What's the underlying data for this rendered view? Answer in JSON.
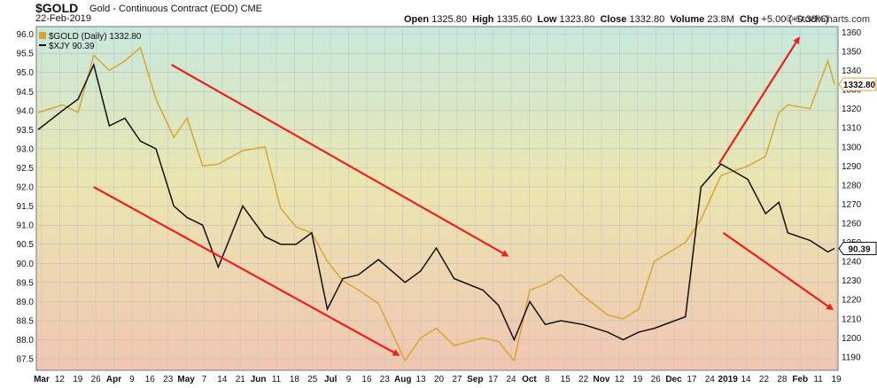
{
  "header": {
    "symbol": "$GOLD",
    "name": "Gold - Continuous Contract (EOD)",
    "exchange": "CME",
    "date": "22-Feb-2019",
    "open_label": "Open",
    "open": "1325.80",
    "high_label": "High",
    "high": "1335.60",
    "low_label": "Low",
    "low": "1323.80",
    "close_label": "Close",
    "close": "1332.80",
    "volume_label": "Volume",
    "volume": "23.8M",
    "chg_label": "Chg",
    "chg": "+5.00 (+0.38%)",
    "brand": "© StockCharts.com"
  },
  "colors": {
    "gold": "#d9a531",
    "xjy": "#111111",
    "arrow": "#e8201e",
    "bg_top": "#c7e9dd",
    "bg_mid": "#ebe6b0",
    "bg_bottom": "#f1c6b2"
  },
  "chart_data": {
    "type": "line",
    "title": "$GOLD Gold - Continuous Contract (EOD) CME",
    "legend": [
      {
        "label": "$GOLD (Daily) 1332.80",
        "color": "#d9a531",
        "style": "square"
      },
      {
        "label": "$XJY 90.39",
        "color": "#111111",
        "style": "line"
      }
    ],
    "legend_placement": "top-left",
    "x_range": [
      "2018-03-01",
      "2019-02-22"
    ],
    "x_ticks": [
      "Mar",
      "12",
      "19",
      "26",
      "Apr",
      "9",
      "16",
      "23",
      "May",
      "7",
      "14",
      "21",
      "Jun",
      "11",
      "18",
      "25",
      "Jul",
      "9",
      "16",
      "23",
      "Aug",
      "13",
      "20",
      "27",
      "Sep",
      "17",
      "24",
      "Oct",
      "8",
      "15",
      "22",
      "Nov",
      "12",
      "19",
      "26",
      "Dec",
      "17",
      "24",
      "2019",
      "14",
      "22",
      "28",
      "Feb",
      "11",
      "19"
    ],
    "bold_ticks": [
      "Mar",
      "Apr",
      "May",
      "Jun",
      "Jul",
      "Aug",
      "Sep",
      "Oct",
      "Nov",
      "Dec",
      "2019",
      "Feb"
    ],
    "left_axis": {
      "series": "$XJY",
      "ticks": [
        "87.5",
        "88.0",
        "88.5",
        "89.0",
        "89.5",
        "90.0",
        "90.5",
        "91.0",
        "91.5",
        "92.0",
        "92.5",
        "93.0",
        "93.5",
        "94.0",
        "94.5",
        "95.0",
        "95.5",
        "96.0"
      ],
      "range": [
        87.2,
        96.2
      ]
    },
    "right_axis": {
      "series": "$GOLD",
      "ticks": [
        "1190",
        "1200",
        "1210",
        "1220",
        "1230",
        "1240",
        "1250",
        "1260",
        "1270",
        "1280",
        "1290",
        "1300",
        "1310",
        "1320",
        "1330",
        "1340",
        "1350",
        "1360"
      ],
      "range": [
        1183,
        1363
      ]
    },
    "last_values": {
      "gold": "1332.80",
      "xjy": "90.39"
    },
    "grid": true,
    "series": [
      {
        "name": "$GOLD (Daily)",
        "axis": "right",
        "x": [
          "2018-03-01",
          "2018-03-12",
          "2018-03-19",
          "2018-03-26",
          "2018-04-02",
          "2018-04-09",
          "2018-04-16",
          "2018-04-23",
          "2018-05-01",
          "2018-05-07",
          "2018-05-14",
          "2018-05-21",
          "2018-06-01",
          "2018-06-11",
          "2018-06-18",
          "2018-06-25",
          "2018-07-02",
          "2018-07-09",
          "2018-07-16",
          "2018-07-23",
          "2018-08-01",
          "2018-08-13",
          "2018-08-20",
          "2018-08-27",
          "2018-09-04",
          "2018-09-17",
          "2018-09-24",
          "2018-10-01",
          "2018-10-08",
          "2018-10-15",
          "2018-10-22",
          "2018-11-01",
          "2018-11-12",
          "2018-11-19",
          "2018-11-26",
          "2018-12-03",
          "2018-12-17",
          "2018-12-24",
          "2019-01-02",
          "2019-01-14",
          "2019-01-22",
          "2019-01-28",
          "2019-02-01",
          "2019-02-11",
          "2019-02-19",
          "2019-02-22"
        ],
        "values": [
          1318,
          1322,
          1318,
          1348,
          1340,
          1345,
          1352,
          1325,
          1305,
          1315,
          1290,
          1291,
          1298,
          1300,
          1268,
          1258,
          1255,
          1240,
          1230,
          1225,
          1218,
          1188,
          1200,
          1205,
          1196,
          1200,
          1198,
          1188,
          1225,
          1228,
          1233,
          1222,
          1212,
          1210,
          1215,
          1240,
          1250,
          1262,
          1285,
          1290,
          1295,
          1318,
          1322,
          1320,
          1345,
          1332.8
        ]
      },
      {
        "name": "$XJY",
        "axis": "left",
        "x": [
          "2018-03-01",
          "2018-03-12",
          "2018-03-19",
          "2018-03-26",
          "2018-04-02",
          "2018-04-09",
          "2018-04-16",
          "2018-04-23",
          "2018-05-01",
          "2018-05-07",
          "2018-05-14",
          "2018-05-21",
          "2018-06-01",
          "2018-06-11",
          "2018-06-18",
          "2018-06-25",
          "2018-07-02",
          "2018-07-09",
          "2018-07-16",
          "2018-07-23",
          "2018-08-01",
          "2018-08-13",
          "2018-08-20",
          "2018-08-27",
          "2018-09-04",
          "2018-09-17",
          "2018-09-24",
          "2018-10-01",
          "2018-10-08",
          "2018-10-15",
          "2018-10-22",
          "2018-11-01",
          "2018-11-12",
          "2018-11-19",
          "2018-11-26",
          "2018-12-03",
          "2018-12-17",
          "2018-12-24",
          "2019-01-02",
          "2019-01-14",
          "2019-01-22",
          "2019-01-28",
          "2019-02-01",
          "2019-02-11",
          "2019-02-19",
          "2019-02-22"
        ],
        "values": [
          93.5,
          94.0,
          94.3,
          95.2,
          93.6,
          93.8,
          93.2,
          93.0,
          91.5,
          91.2,
          91.0,
          89.9,
          91.5,
          90.7,
          90.5,
          90.5,
          90.8,
          88.8,
          89.6,
          89.7,
          90.1,
          89.5,
          89.8,
          90.4,
          89.6,
          89.3,
          88.9,
          88.0,
          89.0,
          88.4,
          88.5,
          88.4,
          88.2,
          88.0,
          88.2,
          88.3,
          88.6,
          92.0,
          92.6,
          92.2,
          91.3,
          91.6,
          90.8,
          90.6,
          90.3,
          90.39
        ]
      }
    ],
    "annotations": [
      {
        "type": "arrow",
        "from": [
          "2018-04-30",
          95.2
        ],
        "to": [
          "2018-09-28",
          90.2
        ],
        "color": "#e8201e"
      },
      {
        "type": "arrow",
        "from": [
          "2018-03-26",
          92.0
        ],
        "to": [
          "2018-08-10",
          87.6
        ],
        "color": "#e8201e"
      },
      {
        "type": "arrow",
        "from": [
          "2019-01-01",
          92.6
        ],
        "to": [
          "2019-02-06",
          95.9
        ],
        "color": "#e8201e"
      },
      {
        "type": "arrow",
        "from": [
          "2019-01-03",
          90.8
        ],
        "to": [
          "2019-02-21",
          88.8
        ],
        "color": "#e8201e"
      }
    ]
  }
}
